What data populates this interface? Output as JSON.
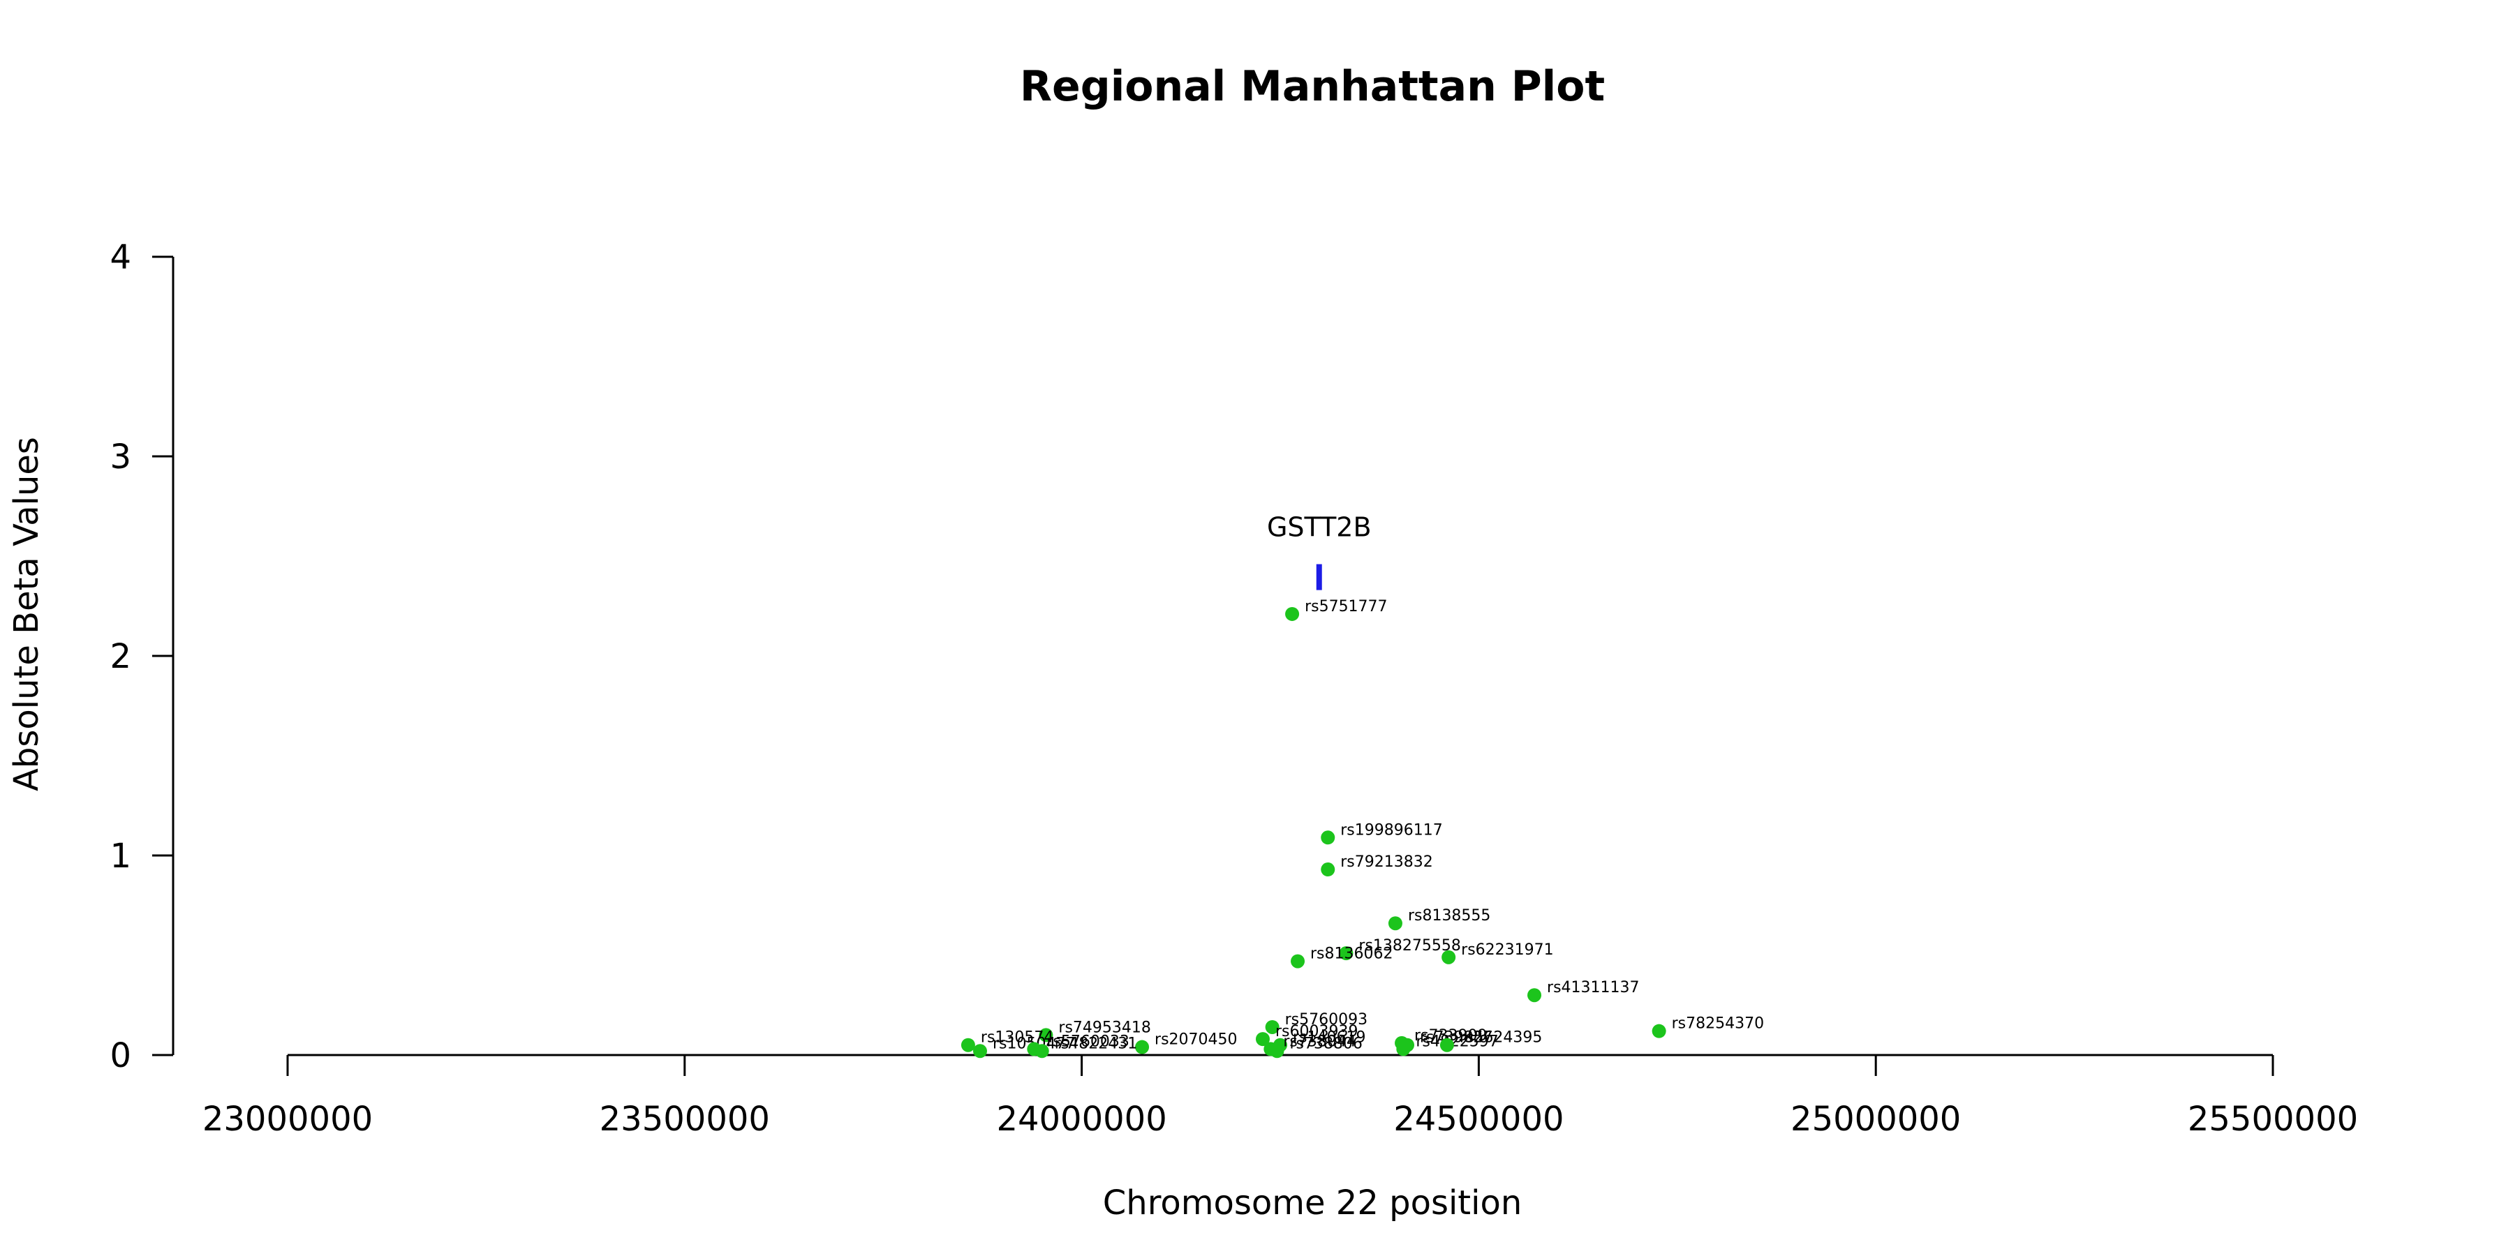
{
  "chart_data": {
    "type": "scatter",
    "title": "Regional Manhattan Plot",
    "xlabel": "Chromosome 22 position",
    "ylabel": "Absolute Beta Values",
    "xlim": [
      23000000,
      25500000
    ],
    "ylim": [
      0,
      4
    ],
    "xticks": [
      "23000000",
      "23500000",
      "24000000",
      "24500000",
      "25000000",
      "25500000"
    ],
    "yticks": [
      "0",
      "1",
      "2",
      "3",
      "4"
    ],
    "grid": false,
    "legend": "none",
    "point_color": "#1cc41c",
    "gene_color": "#1c1ce6",
    "gene": {
      "name": "GSTT2B",
      "x": 24299000,
      "y_low": 2.33,
      "y_high": 2.46
    },
    "points": [
      {
        "label": "rs5751777",
        "x": 24265000,
        "y": 2.21
      },
      {
        "label": "rs199896117",
        "x": 24310000,
        "y": 1.09
      },
      {
        "label": "rs79213832",
        "x": 24310000,
        "y": 0.93
      },
      {
        "label": "rs8138555",
        "x": 24395000,
        "y": 0.66
      },
      {
        "label": "rs138275558",
        "x": 24333000,
        "y": 0.51
      },
      {
        "label": "rs8136062",
        "x": 24272000,
        "y": 0.47
      },
      {
        "label": "rs62231971",
        "x": 24462000,
        "y": 0.49
      },
      {
        "label": "rs41311137",
        "x": 24570000,
        "y": 0.3
      },
      {
        "label": "rs78254370",
        "x": 24727000,
        "y": 0.12
      },
      {
        "label": "rs74953418",
        "x": 23955000,
        "y": 0.1
      },
      {
        "label": "rs5760093",
        "x": 24240000,
        "y": 0.14
      },
      {
        "label": "rs6003939",
        "x": 24228000,
        "y": 0.08
      },
      {
        "label": "rs2070450",
        "x": 24076000,
        "y": 0.04
      },
      {
        "label": "rs130574",
        "x": 23857000,
        "y": 0.05
      },
      {
        "label": "rs1050477",
        "x": 23872000,
        "y": 0.02
      },
      {
        "label": "rs5760033",
        "x": 23940000,
        "y": 0.03
      },
      {
        "label": "rs4822431",
        "x": 23950000,
        "y": 0.02
      },
      {
        "label": "rs140619",
        "x": 24250000,
        "y": 0.05
      },
      {
        "label": "rs738044",
        "x": 24238000,
        "y": 0.03
      },
      {
        "label": "rs738806",
        "x": 24246000,
        "y": 0.02
      },
      {
        "label": "rs733909",
        "x": 24403000,
        "y": 0.06
      },
      {
        "label": "rs739827",
        "x": 24410000,
        "y": 0.05
      },
      {
        "label": "rs4822597",
        "x": 24405000,
        "y": 0.03
      },
      {
        "label": "rs5624395",
        "x": 24460000,
        "y": 0.05
      }
    ]
  }
}
